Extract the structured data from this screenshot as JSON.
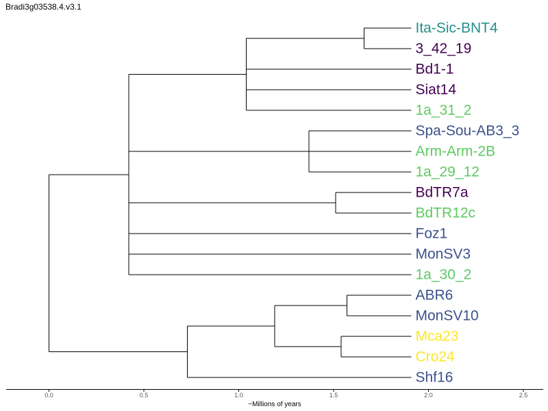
{
  "title": "Bradi3g03538.4.v3.1",
  "colors": {
    "purple": "#440154",
    "blue": "#3b528b",
    "teal": "#21918c",
    "green": "#5ec962",
    "yellow": "#fde725",
    "branch": "#000000"
  },
  "axis": {
    "label": "~Millions of years",
    "range": [
      0.0,
      2.5
    ],
    "ticks": [
      {
        "value": 0.0,
        "label": "0.0"
      },
      {
        "value": 0.5,
        "label": "0.5"
      },
      {
        "value": 1.0,
        "label": "1.0"
      },
      {
        "value": 1.5,
        "label": "1.5"
      },
      {
        "value": 2.0,
        "label": "2.0"
      },
      {
        "value": 2.5,
        "label": "2.5"
      }
    ]
  },
  "leaves": [
    {
      "name": "Ita-Sic-BNT4",
      "color": "teal"
    },
    {
      "name": "3_42_19",
      "color": "purple"
    },
    {
      "name": "Bd1-1",
      "color": "purple"
    },
    {
      "name": "Siat14",
      "color": "purple"
    },
    {
      "name": "1a_31_2",
      "color": "green"
    },
    {
      "name": "Spa-Sou-AB3_3",
      "color": "blue"
    },
    {
      "name": "Arm-Arm-2B",
      "color": "green"
    },
    {
      "name": "1a_29_12",
      "color": "green"
    },
    {
      "name": "BdTR7a",
      "color": "purple"
    },
    {
      "name": "BdTR12c",
      "color": "green"
    },
    {
      "name": "Foz1",
      "color": "blue"
    },
    {
      "name": "MonSV3",
      "color": "blue"
    },
    {
      "name": "1a_30_2",
      "color": "green"
    },
    {
      "name": "ABR6",
      "color": "blue"
    },
    {
      "name": "MonSV10",
      "color": "blue"
    },
    {
      "name": "Mca23",
      "color": "yellow"
    },
    {
      "name": "Cro24",
      "color": "yellow"
    },
    {
      "name": "Shf16",
      "color": "blue"
    }
  ],
  "tree": {
    "t": 0.0,
    "children": [
      {
        "t": 0.42,
        "children": [
          {
            "t": 1.04,
            "children": [
              {
                "t": 1.66,
                "children": [
                  {
                    "leaf": 0
                  },
                  {
                    "leaf": 1
                  }
                ]
              },
              {
                "leaf": 2
              },
              {
                "leaf": 3
              },
              {
                "leaf": 4
              }
            ]
          },
          {
            "t": 1.37,
            "children": [
              {
                "leaf": 5
              },
              {
                "leaf": 6
              },
              {
                "leaf": 7
              }
            ]
          },
          {
            "t": 1.51,
            "children": [
              {
                "leaf": 8
              },
              {
                "leaf": 9
              }
            ]
          },
          {
            "leaf": 10
          },
          {
            "leaf": 11
          },
          {
            "leaf": 12
          }
        ]
      },
      {
        "t": 0.73,
        "children": [
          {
            "t": 1.19,
            "children": [
              {
                "t": 1.57,
                "children": [
                  {
                    "leaf": 13
                  },
                  {
                    "leaf": 14
                  }
                ]
              },
              {
                "t": 1.54,
                "children": [
                  {
                    "leaf": 15
                  },
                  {
                    "leaf": 16
                  }
                ]
              }
            ]
          },
          {
            "leaf": 17
          }
        ]
      }
    ]
  }
}
